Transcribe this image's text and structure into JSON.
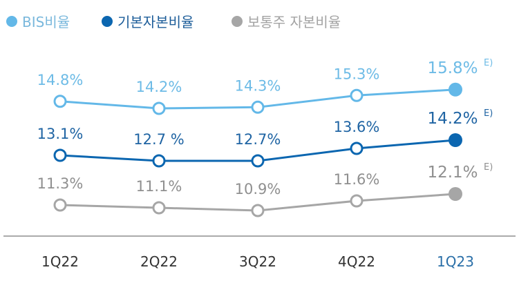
{
  "chart_data": {
    "type": "line",
    "categories": [
      "1Q22",
      "2Q22",
      "3Q22",
      "4Q22",
      "1Q23"
    ],
    "highlight_category": "1Q23",
    "legend_position": "top-left",
    "grid": false,
    "series": [
      {
        "name": "BIS비율",
        "color": "#63b8e8",
        "label_color": "#6dbbe6",
        "values": [
          14.8,
          14.2,
          14.3,
          15.3,
          15.8
        ],
        "labels": [
          "14.8%",
          "14.2%",
          "14.3%",
          "15.3%",
          "15.8%"
        ]
      },
      {
        "name": "기본자본비율",
        "color": "#0b66b0",
        "label_color": "#1f64a3",
        "values": [
          13.1,
          12.7,
          12.7,
          13.6,
          14.2
        ],
        "labels": [
          "13.1%",
          "12.7 %",
          "12.7%",
          "13.6%",
          "14.2%"
        ]
      },
      {
        "name": "보통주 자본비율",
        "color": "#a6a6a6",
        "label_color": "#8f8f8f",
        "values": [
          11.3,
          11.1,
          10.9,
          11.6,
          12.1
        ],
        "labels": [
          "11.3%",
          "11.1%",
          "10.9%",
          "11.6%",
          "12.1%"
        ]
      }
    ],
    "estimate_marker": "E)",
    "estimated_points": [
      4
    ]
  }
}
